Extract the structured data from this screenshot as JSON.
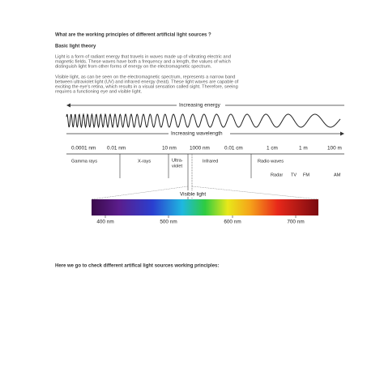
{
  "header": {
    "title": "What are the working principles of different artificial light sources ?"
  },
  "section": {
    "heading": "Basic light theory"
  },
  "paragraphs": [
    {
      "lines": [
        "Light is a form of radiant energy that travels in waves made up of vibrating electric and",
        "magnetic fields. These waves have both a frequency and a length, the values of which",
        "distinguish light from other forms of energy on the electromagnetic spectrum."
      ]
    },
    {
      "lines": [
        "Visible light, as can be seen on the electromagnetic spectrum, represents a narrow band",
        "between ultraviolet light (UV) and infrared energy (heat). These light waves are capable of",
        "exciting the eye's retina, which results in a visual sensation called sight. Therefore, seeing",
        "requires a functioning eye and visible light."
      ]
    }
  ],
  "diagram": {
    "energy_label": "Increasing energy",
    "wavelength_label": "Increasing wavelength",
    "scale": [
      "0.0001 nm",
      "0.01 nm",
      "10 nm",
      "1000 nm",
      "0.01 cm",
      "1 cm",
      "1 m",
      "100 m"
    ],
    "regions": [
      "Gamma rays",
      "X-rays",
      "Ultra-",
      "violet",
      "Infrared",
      "Radio waves",
      "Radar",
      "TV",
      "FM",
      "AM"
    ],
    "visible_label": "Visible light",
    "visible_scale": [
      "400 nm",
      "500 nm",
      "600 nm",
      "700 nm"
    ]
  },
  "footer": {
    "text": "Here we go to check different artifical light sources working principles:"
  }
}
